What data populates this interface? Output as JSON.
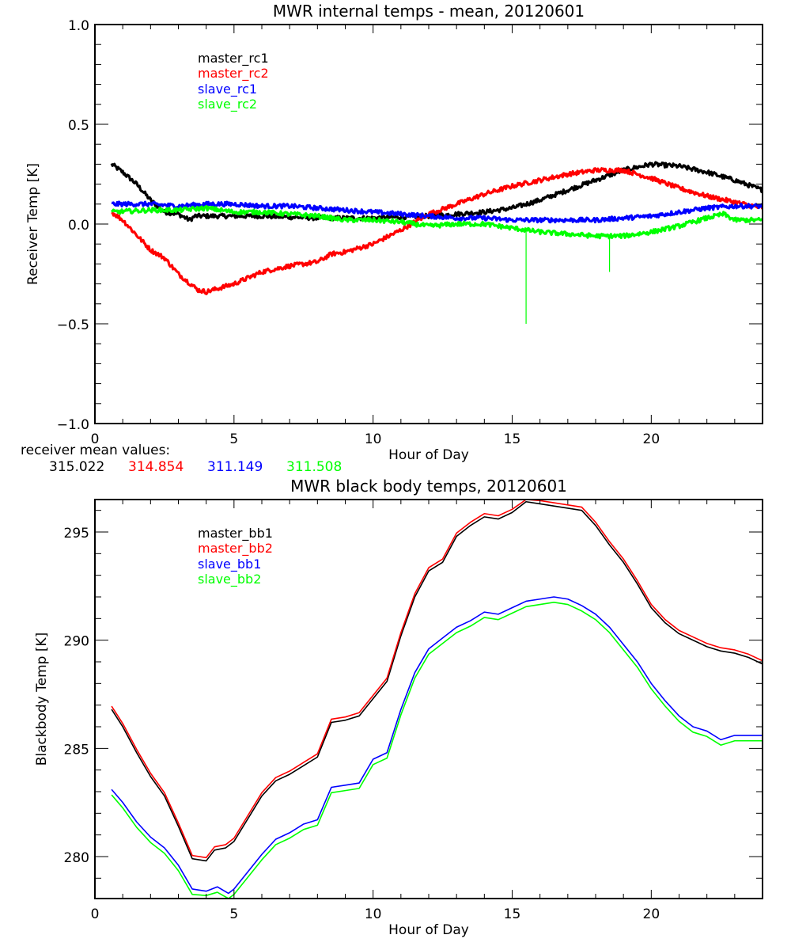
{
  "colors": {
    "black": "#000000",
    "red": "#ff0000",
    "blue": "#0000ff",
    "green": "#00ff00"
  },
  "mean_values": {
    "label": "receiver mean values:",
    "values": [
      {
        "text": "315.022",
        "color": "#000000"
      },
      {
        "text": "314.854",
        "color": "#ff0000"
      },
      {
        "text": "311.149",
        "color": "#0000ff"
      },
      {
        "text": "311.508",
        "color": "#00ff00"
      }
    ]
  },
  "chart_data": [
    {
      "type": "line",
      "title": "MWR internal temps - mean, 20120601",
      "xlabel": "Hour of Day",
      "ylabel": "Receiver Temp [K]",
      "xlim": [
        0,
        24
      ],
      "ylim": [
        -1.0,
        1.0
      ],
      "xticks": [
        0,
        5,
        10,
        15,
        20
      ],
      "xtick_labels": [
        "0",
        "5",
        "10",
        "15",
        "20"
      ],
      "xminor": 1,
      "yticks": [
        -1.0,
        -0.5,
        0.0,
        0.5,
        1.0
      ],
      "ytick_labels": [
        "-1.0",
        "-0.5",
        "0.0",
        "0.5",
        "1.0"
      ],
      "yminor": 0.1,
      "grid": false,
      "legend_position": "top-left",
      "noisy": true,
      "series": [
        {
          "name": "master_rc1",
          "color": "#000000",
          "x": [
            0.6,
            1,
            1.5,
            2,
            2.5,
            3,
            3.4,
            3.6,
            4,
            5,
            6,
            7,
            8,
            9,
            10,
            11,
            12,
            13,
            14,
            15,
            16,
            17,
            18,
            19,
            20,
            21,
            22,
            23,
            24
          ],
          "y": [
            0.3,
            0.26,
            0.2,
            0.12,
            0.06,
            0.05,
            0.02,
            0.04,
            0.04,
            0.04,
            0.04,
            0.035,
            0.03,
            0.03,
            0.03,
            0.035,
            0.04,
            0.05,
            0.06,
            0.08,
            0.12,
            0.17,
            0.22,
            0.27,
            0.3,
            0.29,
            0.26,
            0.22,
            0.17
          ]
        },
        {
          "name": "master_rc2",
          "color": "#ff0000",
          "x": [
            0.6,
            1,
            2,
            2.5,
            3,
            3.7,
            4,
            5,
            6,
            7,
            8,
            8.5,
            9,
            10,
            11,
            12,
            13,
            14,
            15,
            16,
            17,
            18,
            19,
            20,
            21,
            22,
            23,
            24
          ],
          "y": [
            0.06,
            0.02,
            -0.13,
            -0.17,
            -0.25,
            -0.33,
            -0.34,
            -0.3,
            -0.24,
            -0.21,
            -0.19,
            -0.15,
            -0.14,
            -0.1,
            -0.03,
            0.05,
            0.1,
            0.15,
            0.19,
            0.22,
            0.25,
            0.27,
            0.27,
            0.23,
            0.18,
            0.14,
            0.11,
            0.08
          ]
        },
        {
          "name": "slave_rc1",
          "color": "#0000ff",
          "x": [
            0.6,
            2,
            3,
            4,
            5,
            6,
            7,
            8,
            9,
            10,
            11,
            12,
            13,
            14,
            15,
            16,
            17,
            18,
            19,
            20,
            21,
            22,
            23,
            24
          ],
          "y": [
            0.1,
            0.1,
            0.09,
            0.1,
            0.1,
            0.09,
            0.09,
            0.08,
            0.07,
            0.06,
            0.05,
            0.04,
            0.03,
            0.03,
            0.02,
            0.02,
            0.02,
            0.02,
            0.03,
            0.04,
            0.06,
            0.08,
            0.09,
            0.09
          ]
        },
        {
          "name": "slave_rc2",
          "color": "#00ff00",
          "x": [
            0.6,
            2,
            3,
            4,
            5,
            6,
            7,
            8,
            9,
            10,
            11,
            12,
            13,
            14,
            15,
            16,
            17,
            18,
            19,
            20,
            21,
            22,
            22.6,
            23,
            24
          ],
          "y": [
            0.06,
            0.07,
            0.07,
            0.08,
            0.06,
            0.06,
            0.05,
            0.04,
            0.02,
            0.02,
            0.01,
            -0.01,
            0.0,
            0.0,
            -0.02,
            -0.04,
            -0.05,
            -0.06,
            -0.06,
            -0.04,
            -0.01,
            0.03,
            0.05,
            0.02,
            0.02
          ],
          "spikes": [
            {
              "x": 15.5,
              "y": -0.5
            },
            {
              "x": 18.5,
              "y": -0.24
            }
          ]
        }
      ]
    },
    {
      "type": "line",
      "title": "MWR black body temps, 20120601",
      "xlabel": "Hour of Day",
      "ylabel": "Blackbody Temp [K]",
      "xlim": [
        0,
        24
      ],
      "ylim": [
        278.06,
        296.5
      ],
      "xticks": [
        0,
        5,
        10,
        15,
        20
      ],
      "xtick_labels": [
        "0",
        "5",
        "10",
        "15",
        "20"
      ],
      "xminor": 1,
      "yticks": [
        280,
        285,
        290,
        295
      ],
      "ytick_labels": [
        "280",
        "285",
        "290",
        "295"
      ],
      "yminor": 1,
      "grid": false,
      "legend_position": "top-left",
      "noisy": false,
      "series": [
        {
          "name": "master_bb1",
          "color": "#000000",
          "x": [
            0.6,
            1,
            1.5,
            2,
            2.5,
            3,
            3.5,
            4,
            4.3,
            4.7,
            5,
            6,
            6.5,
            7,
            7.5,
            8,
            8.5,
            9,
            9.5,
            10,
            10.5,
            11,
            11.5,
            12,
            12.5,
            13,
            13.5,
            14,
            14.5,
            15,
            15.5,
            16,
            16.5,
            17,
            17.5,
            18,
            18.5,
            19,
            19.5,
            20,
            20.5,
            21,
            21.5,
            22,
            22.5,
            23,
            23.5,
            24
          ],
          "y": [
            286.8,
            286.0,
            284.8,
            283.7,
            282.8,
            281.4,
            279.9,
            279.8,
            280.3,
            280.4,
            280.7,
            282.8,
            283.5,
            283.8,
            284.2,
            284.6,
            286.2,
            286.3,
            286.5,
            287.3,
            288.1,
            290.2,
            292.0,
            293.2,
            293.6,
            294.8,
            295.3,
            295.7,
            295.6,
            295.9,
            296.4,
            296.3,
            296.2,
            296.1,
            296.0,
            295.3,
            294.4,
            293.6,
            292.6,
            291.5,
            290.8,
            290.3,
            290.0,
            289.7,
            289.5,
            289.4,
            289.2,
            288.9
          ]
        },
        {
          "name": "master_bb2",
          "color": "#ff0000",
          "x": [
            0.6,
            1,
            1.5,
            2,
            2.5,
            3,
            3.5,
            4,
            4.3,
            4.7,
            5,
            6,
            6.5,
            7,
            7.5,
            8,
            8.5,
            9,
            9.5,
            10,
            10.5,
            11,
            11.5,
            12,
            12.5,
            13,
            13.5,
            14,
            14.5,
            15,
            15.5,
            16,
            16.5,
            17,
            17.5,
            18,
            18.5,
            19,
            19.5,
            20,
            20.5,
            21,
            21.5,
            22,
            22.5,
            23,
            23.5,
            24
          ],
          "y": [
            286.95,
            286.15,
            284.95,
            283.85,
            282.95,
            281.55,
            280.05,
            279.95,
            280.45,
            280.55,
            280.85,
            282.95,
            283.65,
            283.95,
            284.35,
            284.75,
            286.35,
            286.45,
            286.65,
            287.45,
            288.25,
            290.35,
            292.15,
            293.35,
            293.75,
            294.95,
            295.45,
            295.85,
            295.75,
            296.05,
            296.5,
            296.45,
            296.35,
            296.25,
            296.15,
            295.45,
            294.55,
            293.75,
            292.75,
            291.65,
            290.95,
            290.45,
            290.15,
            289.85,
            289.65,
            289.55,
            289.35,
            289.05
          ]
        },
        {
          "name": "slave_bb1",
          "color": "#0000ff",
          "x": [
            0.6,
            1,
            1.5,
            2,
            2.5,
            3,
            3.5,
            4,
            4.4,
            4.8,
            5,
            5.5,
            6,
            6.5,
            7,
            7.5,
            8,
            8.5,
            9,
            9.5,
            10,
            10.5,
            11,
            11.5,
            12,
            12.5,
            13,
            13.5,
            14,
            14.5,
            15,
            15.5,
            16,
            16.5,
            17,
            17.5,
            18,
            18.5,
            19,
            19.5,
            20,
            20.5,
            21,
            21.5,
            22,
            22.5,
            23,
            23.5,
            24
          ],
          "y": [
            283.1,
            282.5,
            281.6,
            280.9,
            280.4,
            279.6,
            278.5,
            278.4,
            278.6,
            278.3,
            278.5,
            279.3,
            280.1,
            280.8,
            281.1,
            281.5,
            281.7,
            283.2,
            283.3,
            283.4,
            284.5,
            284.8,
            286.8,
            288.5,
            289.6,
            290.1,
            290.6,
            290.9,
            291.3,
            291.2,
            291.5,
            291.8,
            291.9,
            292.0,
            291.9,
            291.6,
            291.2,
            290.6,
            289.8,
            289.0,
            288.0,
            287.2,
            286.5,
            286.0,
            285.8,
            285.4,
            285.6,
            285.6,
            285.6
          ]
        },
        {
          "name": "slave_bb2",
          "color": "#00ff00",
          "x": [
            0.6,
            1,
            1.5,
            2,
            2.5,
            3,
            3.5,
            4,
            4.4,
            4.8,
            5,
            5.5,
            6,
            6.5,
            7,
            7.5,
            8,
            8.5,
            9,
            9.5,
            10,
            10.5,
            11,
            11.5,
            12,
            12.5,
            13,
            13.5,
            14,
            14.5,
            15,
            15.5,
            16,
            16.5,
            17,
            17.5,
            18,
            18.5,
            19,
            19.5,
            20,
            20.5,
            21,
            21.5,
            22,
            22.5,
            23,
            23.5,
            24
          ],
          "y": [
            282.85,
            282.25,
            281.35,
            280.65,
            280.15,
            279.35,
            278.25,
            278.2,
            278.35,
            278.06,
            278.25,
            279.05,
            279.85,
            280.55,
            280.85,
            281.25,
            281.45,
            282.95,
            283.05,
            283.15,
            284.25,
            284.55,
            286.55,
            288.25,
            289.35,
            289.85,
            290.35,
            290.65,
            291.05,
            290.95,
            291.25,
            291.55,
            291.65,
            291.75,
            291.65,
            291.35,
            290.95,
            290.35,
            289.55,
            288.75,
            287.75,
            286.95,
            286.25,
            285.75,
            285.55,
            285.15,
            285.35,
            285.35,
            285.35
          ]
        }
      ]
    }
  ]
}
